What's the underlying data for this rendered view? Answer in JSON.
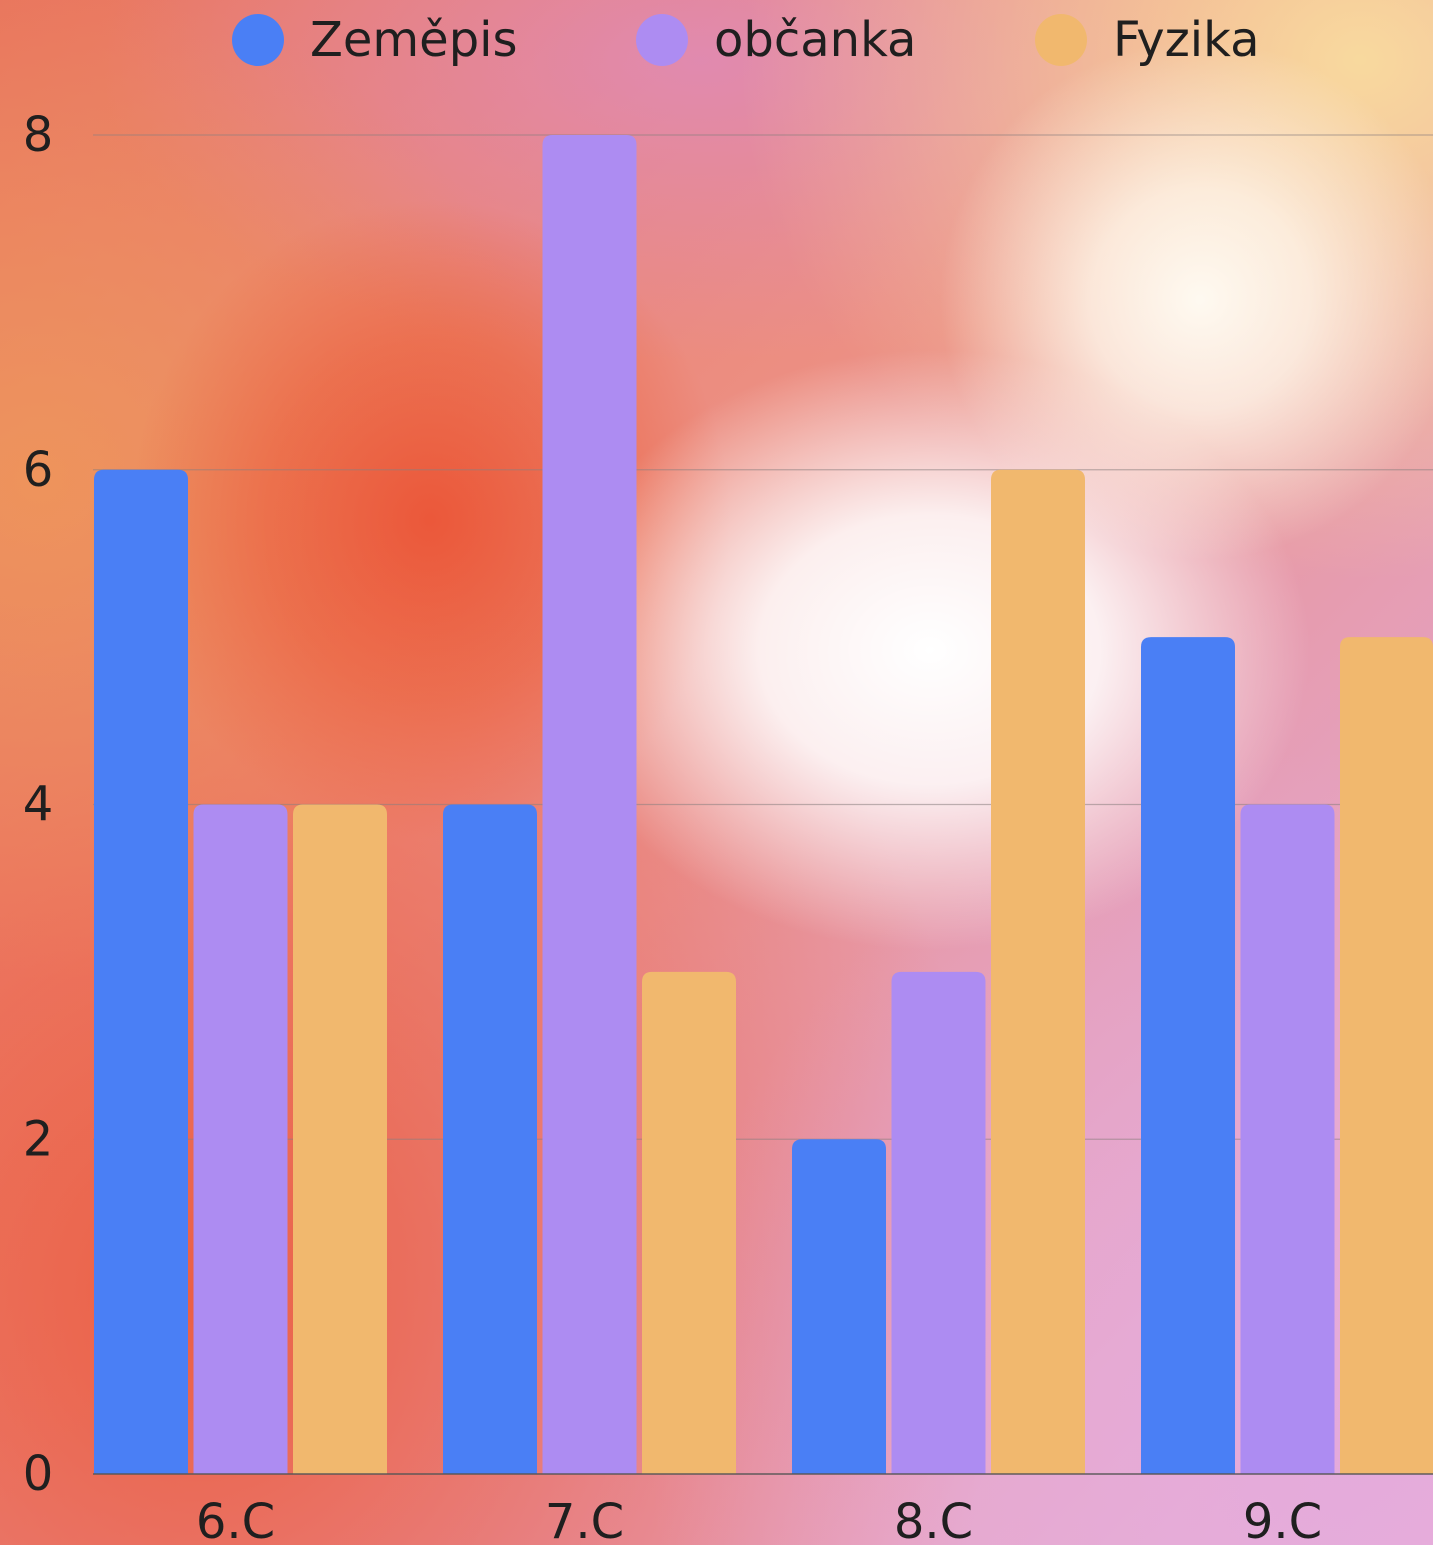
{
  "chart_data": {
    "type": "bar",
    "categories": [
      "6.C",
      "7.C",
      "8.C",
      "9.C"
    ],
    "series": [
      {
        "name": "Zeměpis",
        "values": [
          6,
          4,
          2,
          5
        ],
        "color": "#4a7ff5"
      },
      {
        "name": "občanka",
        "values": [
          4,
          8,
          3,
          4
        ],
        "color": "#ad8cf2"
      },
      {
        "name": "Fyzika",
        "values": [
          4,
          3,
          6,
          5
        ],
        "color": "#f1b86e"
      }
    ],
    "ylim": [
      0,
      8
    ],
    "yticks": [
      "0",
      "2",
      "4",
      "6",
      "8"
    ],
    "grid": true,
    "legend": "top"
  }
}
